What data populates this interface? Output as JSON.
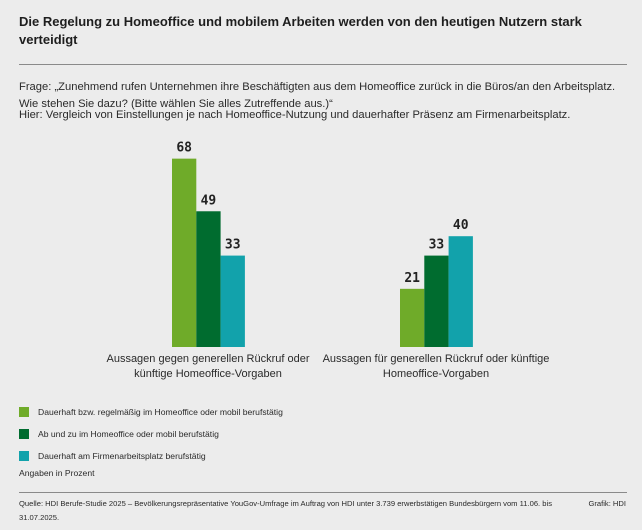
{
  "header": {
    "title": "Die Regelung zu Homeoffice und mobilem Arbeiten werden von den heutigen Nutzern stark verteidigt",
    "question": "Frage: „Zunehmend rufen Unternehmen ihre Beschäftigten aus dem Homeoffice zurück in die Büros/an den Arbeitsplatz. Wie stehen Sie dazu? (Bitte wählen Sie alles Zutreffende aus.)“",
    "note": "Hier: Vergleich von Einstellungen je nach Homeoffice-Nutzung und dauerhafter Präsenz am Firmenarbeitsplatz."
  },
  "chart_data": {
    "type": "bar",
    "title": "Die Regelung zu Homeoffice und mobilem Arbeiten werden von den heutigen Nutzern stark verteidigt",
    "categories": [
      "Aussagen gegen generellen Rückruf oder künftige Homeoffice-Vorgaben",
      "Aussagen für generellen Rückruf oder künftige Homeoffice-Vorgaben"
    ],
    "series": [
      {
        "name": "Dauerhaft bzw. regelmäßig im Homeoffice oder mobil berufstätig",
        "color": "#6fab29",
        "values": [
          68,
          21
        ]
      },
      {
        "name": "Ab und zu im Homeoffice oder mobil berufstätig",
        "color": "#006c2f",
        "values": [
          49,
          33
        ]
      },
      {
        "name": "Dauerhaft am Firmenarbeitsplatz berufstätig",
        "color": "#12a2ab",
        "values": [
          33,
          40
        ]
      }
    ],
    "xlabel": "",
    "ylabel": "Angaben in Prozent",
    "ylim": [
      0,
      100
    ],
    "grid": false,
    "legend": "bottom-left",
    "data_labels": true
  },
  "category_labels": [
    "Aussagen gegen generellen Rückruf oder künftige Homeoffice-Vorgaben",
    "Aussagen für generellen Rückruf oder künftige Homeoffice-Vorgaben"
  ],
  "legend": {
    "items": [
      {
        "label": "Dauerhaft bzw. regelmäßig im Homeoffice oder mobil berufstätig",
        "color": "#6fab29"
      },
      {
        "label": "Ab und zu im Homeoffice oder mobil berufstätig",
        "color": "#006c2f"
      },
      {
        "label": "Dauerhaft am Firmenarbeitsplatz berufstätig",
        "color": "#12a2ab"
      }
    ]
  },
  "unit_note": "Angaben in Prozent",
  "footer": {
    "source": "Quelle: HDI Berufe-Studie 2025 – Bevölkerungsrepräsentative YouGov-Umfrage im Auftrag von HDI unter 3.739 erwerbstätigen Bundesbürgern vom 11.06. bis 31.07.2025.",
    "credit": "Grafik: HDI"
  }
}
